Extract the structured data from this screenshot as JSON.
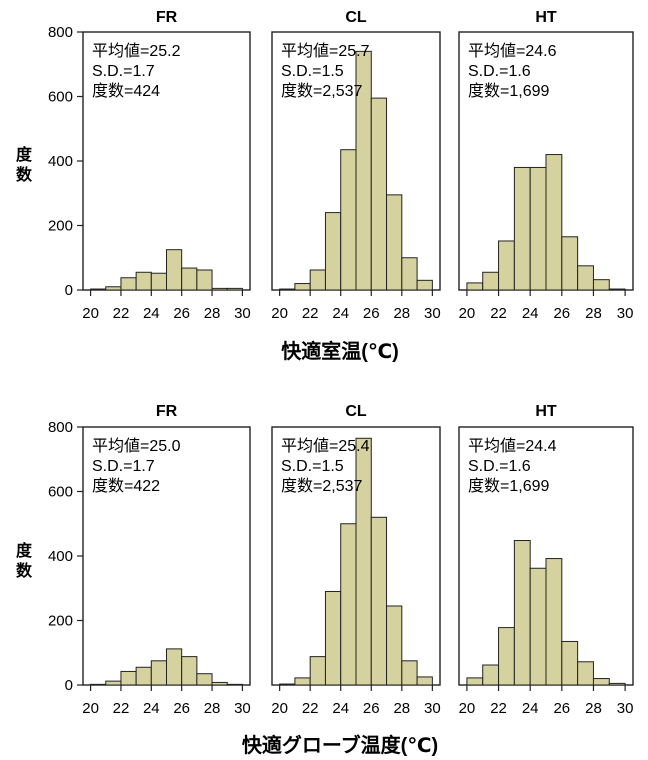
{
  "chart_data": [
    {
      "type": "bar",
      "variable_label": "快適室温(℃)",
      "ylabel": "度数",
      "ylim": [
        0,
        800
      ],
      "yticks": [
        0,
        200,
        400,
        600,
        800
      ],
      "xlim": [
        19.5,
        30.5
      ],
      "xticks": [
        20,
        22,
        24,
        26,
        28,
        30
      ],
      "bin_width": 1,
      "bar_color": "#d6d2a0",
      "bar_edge": "#222222",
      "panels": [
        {
          "title": "FR",
          "stats": [
            "平均値=25.2",
            "S.D.=1.7",
            "度数=424"
          ],
          "bins": [
            {
              "x": 20.5,
              "v": 3
            },
            {
              "x": 21.5,
              "v": 10
            },
            {
              "x": 22.5,
              "v": 38
            },
            {
              "x": 23.5,
              "v": 55
            },
            {
              "x": 24.5,
              "v": 52
            },
            {
              "x": 25.5,
              "v": 125
            },
            {
              "x": 26.5,
              "v": 68
            },
            {
              "x": 27.5,
              "v": 62
            },
            {
              "x": 28.5,
              "v": 5
            },
            {
              "x": 29.5,
              "v": 5
            }
          ]
        },
        {
          "title": "CL",
          "stats": [
            "平均値=25.7",
            "S.D.=1.5",
            "度数=2,537"
          ],
          "bins": [
            {
              "x": 20.5,
              "v": 3
            },
            {
              "x": 21.5,
              "v": 20
            },
            {
              "x": 22.5,
              "v": 62
            },
            {
              "x": 23.5,
              "v": 240
            },
            {
              "x": 24.5,
              "v": 435
            },
            {
              "x": 25.5,
              "v": 740
            },
            {
              "x": 26.5,
              "v": 595
            },
            {
              "x": 27.5,
              "v": 295
            },
            {
              "x": 28.5,
              "v": 100
            },
            {
              "x": 29.5,
              "v": 30
            }
          ]
        },
        {
          "title": "HT",
          "stats": [
            "平均値=24.6",
            "S.D.=1.6",
            "度数=1,699"
          ],
          "bins": [
            {
              "x": 20.5,
              "v": 22
            },
            {
              "x": 21.5,
              "v": 55
            },
            {
              "x": 22.5,
              "v": 152
            },
            {
              "x": 23.5,
              "v": 380
            },
            {
              "x": 24.5,
              "v": 380
            },
            {
              "x": 25.5,
              "v": 420
            },
            {
              "x": 26.5,
              "v": 165
            },
            {
              "x": 27.5,
              "v": 75
            },
            {
              "x": 28.5,
              "v": 32
            },
            {
              "x": 29.5,
              "v": 3
            }
          ]
        }
      ]
    },
    {
      "type": "bar",
      "variable_label": "快適グローブ温度(℃)",
      "ylabel": "度数",
      "ylim": [
        0,
        800
      ],
      "yticks": [
        0,
        200,
        400,
        600,
        800
      ],
      "xlim": [
        19.5,
        30.5
      ],
      "xticks": [
        20,
        22,
        24,
        26,
        28,
        30
      ],
      "bin_width": 1,
      "bar_color": "#d6d2a0",
      "bar_edge": "#222222",
      "panels": [
        {
          "title": "FR",
          "stats": [
            "平均値=25.0",
            "S.D.=1.7",
            "度数=422"
          ],
          "bins": [
            {
              "x": 20.5,
              "v": 2
            },
            {
              "x": 21.5,
              "v": 12
            },
            {
              "x": 22.5,
              "v": 42
            },
            {
              "x": 23.5,
              "v": 55
            },
            {
              "x": 24.5,
              "v": 75
            },
            {
              "x": 25.5,
              "v": 112
            },
            {
              "x": 26.5,
              "v": 88
            },
            {
              "x": 27.5,
              "v": 35
            },
            {
              "x": 28.5,
              "v": 8
            },
            {
              "x": 29.5,
              "v": 2
            }
          ]
        },
        {
          "title": "CL",
          "stats": [
            "平均値=25.4",
            "S.D.=1.5",
            "度数=2,537"
          ],
          "bins": [
            {
              "x": 20.5,
              "v": 3
            },
            {
              "x": 21.5,
              "v": 22
            },
            {
              "x": 22.5,
              "v": 88
            },
            {
              "x": 23.5,
              "v": 290
            },
            {
              "x": 24.5,
              "v": 500
            },
            {
              "x": 25.5,
              "v": 765
            },
            {
              "x": 26.5,
              "v": 520
            },
            {
              "x": 27.5,
              "v": 245
            },
            {
              "x": 28.5,
              "v": 75
            },
            {
              "x": 29.5,
              "v": 25
            }
          ]
        },
        {
          "title": "HT",
          "stats": [
            "平均値=24.4",
            "S.D.=1.6",
            "度数=1,699"
          ],
          "bins": [
            {
              "x": 20.5,
              "v": 22
            },
            {
              "x": 21.5,
              "v": 62
            },
            {
              "x": 22.5,
              "v": 178
            },
            {
              "x": 23.5,
              "v": 448
            },
            {
              "x": 24.5,
              "v": 362
            },
            {
              "x": 25.5,
              "v": 392
            },
            {
              "x": 26.5,
              "v": 135
            },
            {
              "x": 27.5,
              "v": 72
            },
            {
              "x": 28.5,
              "v": 20
            },
            {
              "x": 29.5,
              "v": 5
            }
          ]
        }
      ]
    }
  ]
}
